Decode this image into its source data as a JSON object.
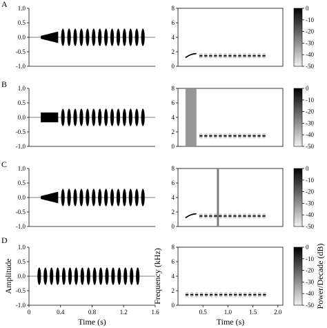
{
  "chart_data": [
    {
      "type": "line",
      "panel": "A",
      "side": "waveform",
      "ylim": [
        -1.0,
        1.0
      ],
      "xlim": [
        0,
        1.6
      ],
      "ytick_labels": [
        "1.0",
        "0.5",
        "0.0",
        "-0.5",
        "-1.0"
      ],
      "ytick_values": [
        1.0,
        0.5,
        0.0,
        -0.5,
        -1.0
      ],
      "xtick_labels": [],
      "chirp": {
        "start": 0.15,
        "end": 0.37,
        "amp": 0.2
      },
      "pulses": {
        "start": 0.43,
        "count": 14,
        "step": 0.078,
        "width": 0.045,
        "amp": 0.3
      }
    },
    {
      "type": "heatmap",
      "panel": "A",
      "side": "spectrogram",
      "ylim": [
        0,
        8
      ],
      "xlim": [
        0,
        2.1
      ],
      "ytick_labels": [
        "8",
        "6",
        "4",
        "2",
        "0"
      ],
      "ytick_values": [
        8,
        6,
        4,
        2,
        0
      ],
      "xtick_labels": [],
      "chirp": {
        "start": 0.15,
        "end": 0.37,
        "f_start": 1.2,
        "f_end": 1.75
      },
      "pulses": {
        "start": 0.43,
        "count": 14,
        "step": 0.097,
        "width": 0.06,
        "freq": 1.45
      },
      "colorbar": {
        "range": [
          -50,
          0
        ],
        "tick_labels": [
          "0",
          "-10",
          "-20",
          "-30",
          "-40",
          "-50"
        ],
        "tick_values": [
          0,
          -10,
          -20,
          -30,
          -40,
          -50
        ]
      }
    },
    {
      "type": "line",
      "panel": "B",
      "side": "waveform",
      "ylim": [
        -1.0,
        1.0
      ],
      "xlim": [
        0,
        1.6
      ],
      "ytick_labels": [
        "1.0",
        "0.5",
        "0.0",
        "-0.5",
        "-1.0"
      ],
      "ytick_values": [
        1.0,
        0.5,
        0.0,
        -0.5,
        -1.0
      ],
      "xtick_labels": [],
      "noise_block": {
        "start": 0.15,
        "end": 0.37,
        "amp": 0.17
      },
      "pulses": {
        "start": 0.43,
        "count": 14,
        "step": 0.078,
        "width": 0.045,
        "amp": 0.3
      }
    },
    {
      "type": "heatmap",
      "panel": "B",
      "side": "spectrogram",
      "ylim": [
        0,
        8
      ],
      "xlim": [
        0,
        2.1
      ],
      "ytick_labels": [
        "8",
        "6",
        "4",
        "2",
        "0"
      ],
      "ytick_values": [
        8,
        6,
        4,
        2,
        0
      ],
      "xtick_labels": [],
      "noise_block": {
        "start": 0.15,
        "end": 0.37,
        "f_low": 0,
        "f_high": 8
      },
      "pulses": {
        "start": 0.43,
        "count": 14,
        "step": 0.097,
        "width": 0.06,
        "freq": 1.45
      },
      "colorbar": {
        "range": [
          -50,
          0
        ],
        "tick_labels": [
          "0",
          "-10",
          "-20",
          "-30",
          "-40",
          "-50"
        ],
        "tick_values": [
          0,
          -10,
          -20,
          -30,
          -40,
          -50
        ]
      }
    },
    {
      "type": "line",
      "panel": "C",
      "side": "waveform",
      "ylim": [
        -1.0,
        1.0
      ],
      "xlim": [
        0,
        1.6
      ],
      "ytick_labels": [
        "1.0",
        "0.5",
        "0.0",
        "-0.5",
        "-1.0"
      ],
      "ytick_values": [
        1.0,
        0.5,
        0.0,
        -0.5,
        -1.0
      ],
      "xtick_labels": [],
      "chirp": {
        "start": 0.15,
        "end": 0.37,
        "amp": 0.2
      },
      "pulses": {
        "start": 0.43,
        "count": 14,
        "step": 0.078,
        "width": 0.045,
        "amp": 0.3
      }
    },
    {
      "type": "heatmap",
      "panel": "C",
      "side": "spectrogram",
      "ylim": [
        0,
        8
      ],
      "xlim": [
        0,
        2.1
      ],
      "ytick_labels": [
        "8",
        "6",
        "4",
        "2",
        "0"
      ],
      "ytick_values": [
        8,
        6,
        4,
        2,
        0
      ],
      "xtick_labels": [],
      "chirp": {
        "start": 0.15,
        "end": 0.37,
        "f_start": 1.2,
        "f_end": 1.75
      },
      "noise_band": {
        "start": 0.78,
        "end": 0.82,
        "f_low": 0,
        "f_high": 8
      },
      "pulses": {
        "start": 0.43,
        "count": 14,
        "step": 0.097,
        "width": 0.06,
        "freq": 1.45
      },
      "colorbar": {
        "range": [
          -50,
          0
        ],
        "tick_labels": [
          "0",
          "-10",
          "-20",
          "-30",
          "-40",
          "-50"
        ],
        "tick_values": [
          0,
          -10,
          -20,
          -30,
          -40,
          -50
        ]
      }
    },
    {
      "type": "line",
      "panel": "D",
      "side": "waveform",
      "ylim": [
        -1.0,
        1.0
      ],
      "xlim": [
        0,
        1.6
      ],
      "ylabel": "Amplitude",
      "xlabel": "Time (s)",
      "ytick_labels": [
        "1.0",
        "0.5",
        "0.0",
        "-0.5",
        "-1.0"
      ],
      "ytick_values": [
        1.0,
        0.5,
        0.0,
        -0.5,
        -1.0
      ],
      "xtick_labels": [
        "0",
        "0.4",
        "0.8",
        "1.2",
        "1.6"
      ],
      "xtick_values": [
        0,
        0.4,
        0.8,
        1.2,
        1.6
      ],
      "pulses": {
        "start": 0.13,
        "count": 17,
        "step": 0.078,
        "width": 0.045,
        "amp": 0.3
      }
    },
    {
      "type": "heatmap",
      "panel": "D",
      "side": "spectrogram",
      "ylim": [
        0,
        8
      ],
      "xlim": [
        0,
        2.1
      ],
      "ylabel": "Frequency (kHz)",
      "xlabel": "Time (s)",
      "ytick_labels": [
        "8",
        "6",
        "4",
        "2",
        "0"
      ],
      "ytick_values": [
        8,
        6,
        4,
        2,
        0
      ],
      "xtick_labels": [
        "0.5",
        "1.0",
        "1.5",
        "2.0"
      ],
      "xtick_values": [
        0.5,
        1.0,
        1.5,
        2.0
      ],
      "pulses": {
        "start": 0.15,
        "count": 17,
        "step": 0.097,
        "width": 0.06,
        "freq": 1.45
      },
      "colorbar": {
        "range": [
          -50,
          0
        ],
        "label": "Power/Decade (dB)",
        "tick_labels": [
          "0",
          "-10",
          "-20",
          "-30",
          "-40",
          "-50"
        ],
        "tick_values": [
          0,
          -10,
          -20,
          -30,
          -40,
          -50
        ]
      }
    }
  ]
}
